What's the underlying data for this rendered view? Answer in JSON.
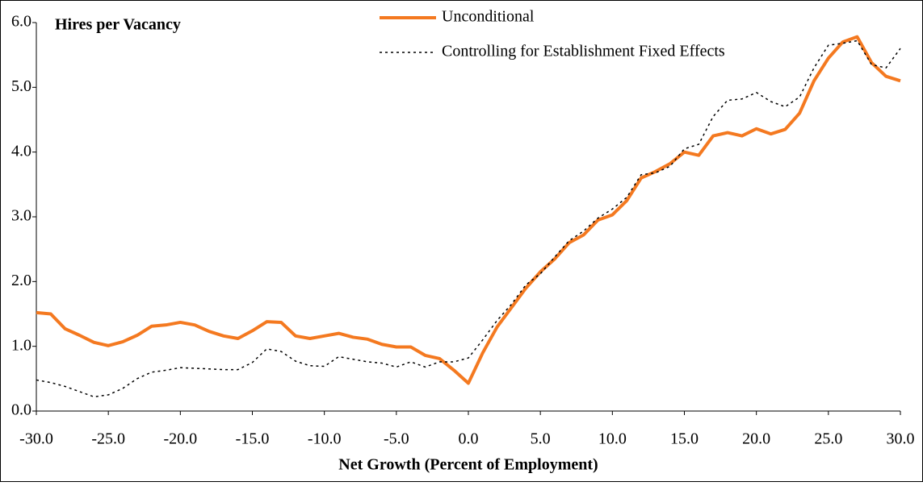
{
  "chart_data": {
    "type": "line",
    "title": "Hires per Vacancy",
    "x_label": "Net Growth (Percent of Employment)",
    "x": [
      -30,
      -29,
      -28,
      -27,
      -26,
      -25,
      -24,
      -23,
      -22,
      -21,
      -20,
      -19,
      -18,
      -17,
      -16,
      -15,
      -14,
      -13,
      -12,
      -11,
      -10,
      -9,
      -8,
      -7,
      -6,
      -5,
      -4,
      -3,
      -2,
      -1,
      0,
      1,
      2,
      3,
      4,
      5,
      6,
      7,
      8,
      9,
      10,
      11,
      12,
      13,
      14,
      15,
      16,
      17,
      18,
      19,
      20,
      21,
      22,
      23,
      24,
      25,
      26,
      27,
      28,
      29,
      30
    ],
    "series": [
      {
        "name": "Unconditional",
        "color": "#f47920",
        "style": "solid",
        "values": [
          1.52,
          1.5,
          1.27,
          1.17,
          1.06,
          1.01,
          1.07,
          1.17,
          1.31,
          1.33,
          1.37,
          1.33,
          1.23,
          1.16,
          1.12,
          1.24,
          1.38,
          1.37,
          1.16,
          1.12,
          1.16,
          1.2,
          1.14,
          1.11,
          1.03,
          0.99,
          0.99,
          0.86,
          0.81,
          0.63,
          0.43,
          0.9,
          1.3,
          1.6,
          1.9,
          2.15,
          2.35,
          2.6,
          2.72,
          2.95,
          3.03,
          3.25,
          3.6,
          3.7,
          3.82,
          4.0,
          3.95,
          4.25,
          4.3,
          4.25,
          4.36,
          4.28,
          4.35,
          4.6,
          5.1,
          5.45,
          5.7,
          5.78,
          5.38,
          5.17,
          5.1
        ]
      },
      {
        "name": "Controlling for Establishment Fixed Effects",
        "color": "#000000",
        "style": "dotted",
        "values": [
          0.48,
          0.44,
          0.38,
          0.3,
          0.22,
          0.25,
          0.35,
          0.5,
          0.6,
          0.63,
          0.67,
          0.66,
          0.65,
          0.64,
          0.64,
          0.75,
          0.96,
          0.92,
          0.77,
          0.7,
          0.69,
          0.84,
          0.8,
          0.76,
          0.74,
          0.68,
          0.76,
          0.68,
          0.76,
          0.76,
          0.82,
          1.1,
          1.4,
          1.65,
          1.95,
          2.12,
          2.38,
          2.63,
          2.78,
          2.98,
          3.12,
          3.3,
          3.65,
          3.68,
          3.78,
          4.05,
          4.12,
          4.55,
          4.8,
          4.82,
          4.92,
          4.78,
          4.7,
          4.85,
          5.3,
          5.65,
          5.68,
          5.72,
          5.35,
          5.3,
          5.6
        ]
      }
    ],
    "xlim": [
      -30,
      30
    ],
    "xticks": [
      {
        "value": -30,
        "label": "-30.0"
      },
      {
        "value": -25,
        "label": "-25.0"
      },
      {
        "value": -20,
        "label": "-20.0"
      },
      {
        "value": -15,
        "label": "-15.0"
      },
      {
        "value": -10,
        "label": "-10.0"
      },
      {
        "value": -5,
        "label": "-5.0"
      },
      {
        "value": 0,
        "label": "0.0"
      },
      {
        "value": 5,
        "label": "5.0"
      },
      {
        "value": 10,
        "label": "10.0"
      },
      {
        "value": 15,
        "label": "15.0"
      },
      {
        "value": 20,
        "label": "20.0"
      },
      {
        "value": 25,
        "label": "25.0"
      },
      {
        "value": 30,
        "label": "30.0"
      }
    ],
    "ylim": [
      0,
      6
    ],
    "yticks": [
      {
        "value": 0,
        "label": "0.0"
      },
      {
        "value": 1,
        "label": "1.0"
      },
      {
        "value": 2,
        "label": "2.0"
      },
      {
        "value": 3,
        "label": "3.0"
      },
      {
        "value": 4,
        "label": "4.0"
      },
      {
        "value": 5,
        "label": "5.0"
      },
      {
        "value": 6,
        "label": "6.0"
      }
    ],
    "grid": false
  }
}
